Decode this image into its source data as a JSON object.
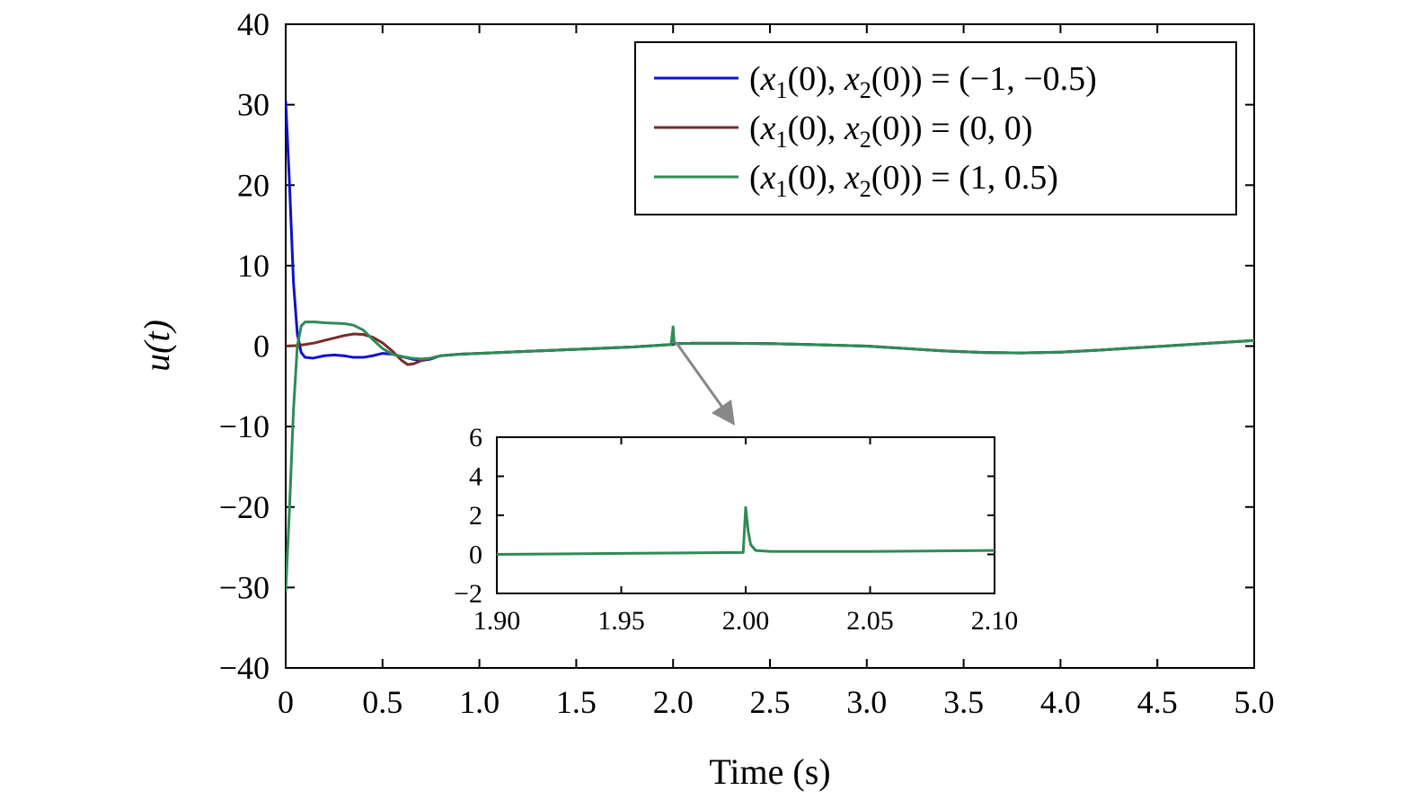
{
  "chart_data": [
    {
      "type": "line",
      "xlabel": "Time (s)",
      "ylabel": "u(t)",
      "xlim": [
        0,
        5.0
      ],
      "ylim": [
        -40,
        40
      ],
      "x_ticks": [
        "0",
        "0.5",
        "1.0",
        "1.5",
        "2.0",
        "2.5",
        "3.0",
        "3.5",
        "4.0",
        "4.5",
        "5.0"
      ],
      "y_ticks": [
        "40",
        "30",
        "20",
        "10",
        "0",
        "−10",
        "−20",
        "−30",
        "−40"
      ],
      "grid": false,
      "legend_position": "top-right",
      "series": [
        {
          "name": "(x1(0), x2(0)) = (−1, −0.5)",
          "legend": {
            "pre": "(",
            "v1": "x",
            "s1": "1",
            "mid": "(0), ",
            "v2": "x",
            "s2": "2",
            "post": "(0)) = (−1, −0.5)"
          },
          "color": "#1010d0",
          "points": [
            [
              0,
              30.5
            ],
            [
              0.02,
              20
            ],
            [
              0.04,
              8
            ],
            [
              0.06,
              1.5
            ],
            [
              0.08,
              -0.8
            ],
            [
              0.1,
              -1.4
            ],
            [
              0.14,
              -1.5
            ],
            [
              0.2,
              -1.2
            ],
            [
              0.25,
              -1.1
            ],
            [
              0.3,
              -1.2
            ],
            [
              0.35,
              -1.4
            ],
            [
              0.4,
              -1.4
            ],
            [
              0.45,
              -1.2
            ],
            [
              0.5,
              -0.9
            ],
            [
              0.55,
              -1.0
            ],
            [
              0.6,
              -1.3
            ],
            [
              0.65,
              -1.6
            ],
            [
              0.7,
              -1.8
            ],
            [
              0.75,
              -1.6
            ],
            [
              0.8,
              -1.2
            ],
            [
              0.9,
              -1.0
            ],
            [
              1.0,
              -0.9
            ],
            [
              1.2,
              -0.7
            ],
            [
              1.4,
              -0.5
            ],
            [
              1.6,
              -0.3
            ],
            [
              1.8,
              -0.1
            ],
            [
              1.99,
              0.2
            ],
            [
              2.0,
              0.2
            ],
            [
              2.01,
              0.3
            ],
            [
              2.1,
              0.35
            ],
            [
              2.3,
              0.35
            ],
            [
              2.5,
              0.3
            ],
            [
              2.7,
              0.2
            ],
            [
              3.0,
              0.0
            ],
            [
              3.2,
              -0.3
            ],
            [
              3.4,
              -0.6
            ],
            [
              3.6,
              -0.8
            ],
            [
              3.8,
              -0.85
            ],
            [
              4.0,
              -0.75
            ],
            [
              4.2,
              -0.5
            ],
            [
              4.4,
              -0.2
            ],
            [
              4.6,
              0.1
            ],
            [
              4.8,
              0.4
            ],
            [
              5.0,
              0.7
            ]
          ]
        },
        {
          "name": "(x1(0), x2(0)) = (0, 0)",
          "legend": {
            "pre": "(",
            "v1": "x",
            "s1": "1",
            "mid": "(0), ",
            "v2": "x",
            "s2": "2",
            "post": "(0)) = (0, 0)"
          },
          "color": "#7a2a2a",
          "points": [
            [
              0,
              0
            ],
            [
              0.05,
              0.05
            ],
            [
              0.1,
              0.2
            ],
            [
              0.15,
              0.4
            ],
            [
              0.2,
              0.7
            ],
            [
              0.25,
              1.0
            ],
            [
              0.3,
              1.3
            ],
            [
              0.35,
              1.5
            ],
            [
              0.4,
              1.45
            ],
            [
              0.45,
              1.1
            ],
            [
              0.5,
              0.4
            ],
            [
              0.55,
              -0.6
            ],
            [
              0.6,
              -1.8
            ],
            [
              0.63,
              -2.3
            ],
            [
              0.66,
              -2.2
            ],
            [
              0.7,
              -1.8
            ],
            [
              0.75,
              -1.5
            ],
            [
              0.8,
              -1.2
            ],
            [
              0.9,
              -1.0
            ],
            [
              1.0,
              -0.9
            ],
            [
              1.2,
              -0.7
            ],
            [
              1.4,
              -0.5
            ],
            [
              1.6,
              -0.3
            ],
            [
              1.8,
              -0.1
            ],
            [
              1.99,
              0.2
            ],
            [
              2.0,
              0.2
            ],
            [
              2.01,
              0.3
            ],
            [
              2.1,
              0.35
            ],
            [
              2.3,
              0.35
            ],
            [
              2.5,
              0.3
            ],
            [
              2.7,
              0.2
            ],
            [
              3.0,
              0.0
            ],
            [
              3.2,
              -0.3
            ],
            [
              3.4,
              -0.6
            ],
            [
              3.6,
              -0.8
            ],
            [
              3.8,
              -0.85
            ],
            [
              4.0,
              -0.75
            ],
            [
              4.2,
              -0.5
            ],
            [
              4.4,
              -0.2
            ],
            [
              4.6,
              0.1
            ],
            [
              4.8,
              0.4
            ],
            [
              5.0,
              0.7
            ]
          ]
        },
        {
          "name": "(x1(0), x2(0)) = (1, 0.5)",
          "legend": {
            "pre": "(",
            "v1": "x",
            "s1": "1",
            "mid": "(0), ",
            "v2": "x",
            "s2": "2",
            "post": "(0)) = (1, 0.5)"
          },
          "color": "#2e8b57",
          "points": [
            [
              0,
              -30.5
            ],
            [
              0.02,
              -20
            ],
            [
              0.04,
              -8
            ],
            [
              0.06,
              0
            ],
            [
              0.08,
              2.5
            ],
            [
              0.1,
              3.0
            ],
            [
              0.15,
              3.0
            ],
            [
              0.2,
              2.9
            ],
            [
              0.25,
              2.85
            ],
            [
              0.3,
              2.8
            ],
            [
              0.35,
              2.6
            ],
            [
              0.4,
              2.0
            ],
            [
              0.45,
              0.8
            ],
            [
              0.5,
              -0.3
            ],
            [
              0.55,
              -1.0
            ],
            [
              0.6,
              -1.3
            ],
            [
              0.65,
              -1.5
            ],
            [
              0.7,
              -1.6
            ],
            [
              0.75,
              -1.5
            ],
            [
              0.8,
              -1.2
            ],
            [
              0.9,
              -1.0
            ],
            [
              1.0,
              -0.9
            ],
            [
              1.2,
              -0.7
            ],
            [
              1.4,
              -0.5
            ],
            [
              1.6,
              -0.3
            ],
            [
              1.8,
              -0.1
            ],
            [
              1.99,
              0.2
            ],
            [
              2.0,
              2.4
            ],
            [
              2.005,
              0.6
            ],
            [
              2.01,
              0.3
            ],
            [
              2.1,
              0.35
            ],
            [
              2.3,
              0.35
            ],
            [
              2.5,
              0.3
            ],
            [
              2.7,
              0.2
            ],
            [
              3.0,
              0.0
            ],
            [
              3.2,
              -0.3
            ],
            [
              3.4,
              -0.6
            ],
            [
              3.6,
              -0.8
            ],
            [
              3.8,
              -0.85
            ],
            [
              4.0,
              -0.75
            ],
            [
              4.2,
              -0.5
            ],
            [
              4.4,
              -0.2
            ],
            [
              4.6,
              0.1
            ],
            [
              4.8,
              0.4
            ],
            [
              5.0,
              0.7
            ]
          ]
        }
      ]
    },
    {
      "type": "line",
      "inset": true,
      "xlim": [
        1.9,
        2.1
      ],
      "ylim": [
        -2,
        6
      ],
      "x_ticks": [
        "1.90",
        "1.95",
        "2.00",
        "2.05",
        "2.10"
      ],
      "y_ticks": [
        "6",
        "4",
        "2",
        "0",
        "−2"
      ],
      "series": [
        {
          "color": "#2e8b57",
          "points": [
            [
              1.9,
              0.0
            ],
            [
              1.95,
              0.05
            ],
            [
              1.999,
              0.1
            ],
            [
              2.0,
              2.4
            ],
            [
              2.001,
              1.2
            ],
            [
              2.002,
              0.5
            ],
            [
              2.004,
              0.2
            ],
            [
              2.01,
              0.15
            ],
            [
              2.05,
              0.15
            ],
            [
              2.1,
              0.2
            ]
          ]
        }
      ]
    }
  ]
}
